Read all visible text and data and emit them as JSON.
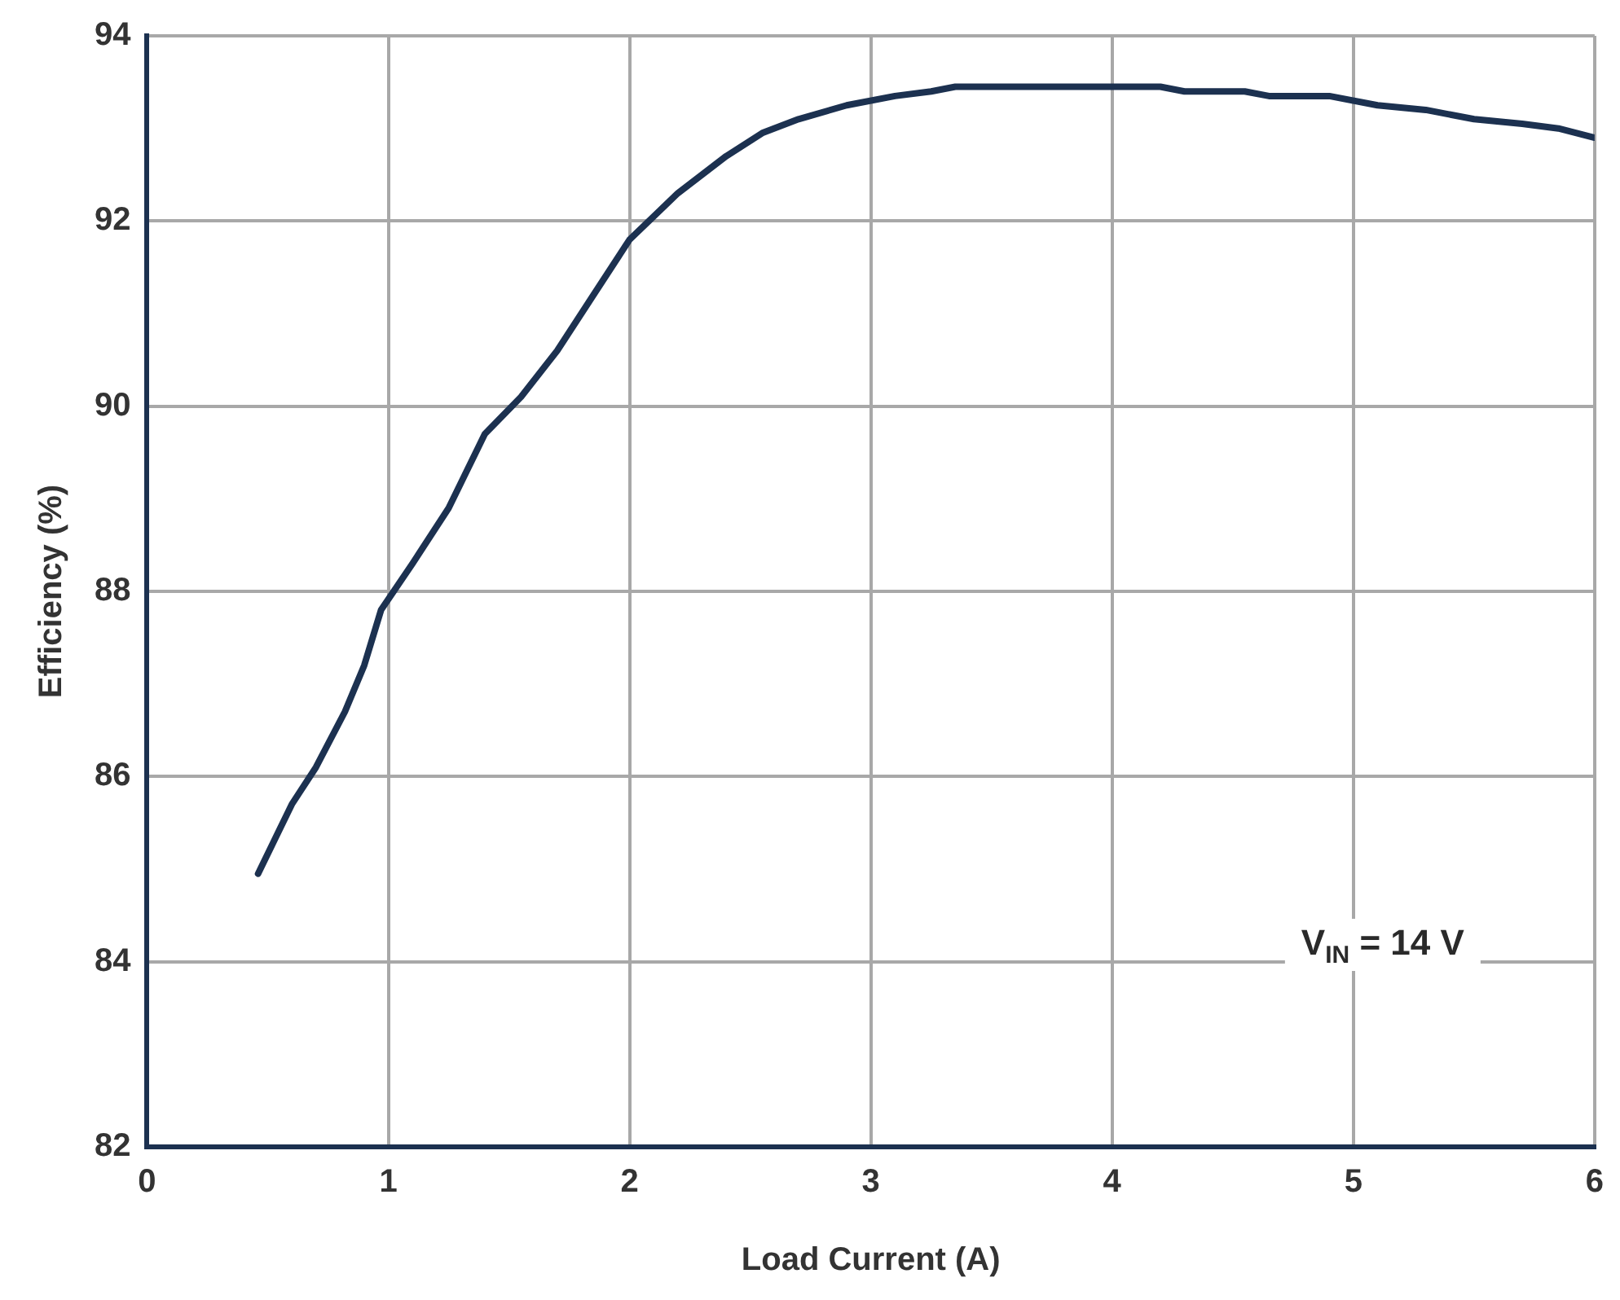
{
  "chart_data": {
    "type": "line",
    "xlabel": "Load Current (A)",
    "ylabel": "Efficiency (%)",
    "x": [
      0.46,
      0.6,
      0.7,
      0.82,
      0.9,
      0.97,
      1.1,
      1.25,
      1.4,
      1.55,
      1.7,
      1.85,
      2.0,
      2.2,
      2.4,
      2.55,
      2.7,
      2.9,
      3.1,
      3.25,
      3.35,
      3.6,
      4.0,
      4.2,
      4.3,
      4.55,
      4.65,
      4.9,
      5.1,
      5.3,
      5.5,
      5.7,
      5.85,
      6.0
    ],
    "series": [
      {
        "color": "#1c3150",
        "values": [
          84.95,
          85.7,
          86.1,
          86.7,
          87.2,
          87.8,
          88.3,
          88.9,
          89.7,
          90.1,
          90.6,
          91.2,
          91.8,
          92.3,
          92.7,
          92.95,
          93.1,
          93.25,
          93.35,
          93.4,
          93.45,
          93.45,
          93.45,
          93.45,
          93.4,
          93.4,
          93.35,
          93.35,
          93.25,
          93.2,
          93.1,
          93.05,
          93.0,
          92.9
        ]
      }
    ],
    "xlim": [
      0,
      6
    ],
    "xticks": [
      0,
      1,
      2,
      3,
      4,
      5,
      6
    ],
    "ylim": [
      82,
      94
    ],
    "yticks": [
      82,
      84,
      86,
      88,
      90,
      92,
      94
    ],
    "grid": true,
    "legend": false,
    "marker": "none",
    "line_style": "solid",
    "annotations": [
      "V$_{IN}$ = 14 V"
    ]
  }
}
